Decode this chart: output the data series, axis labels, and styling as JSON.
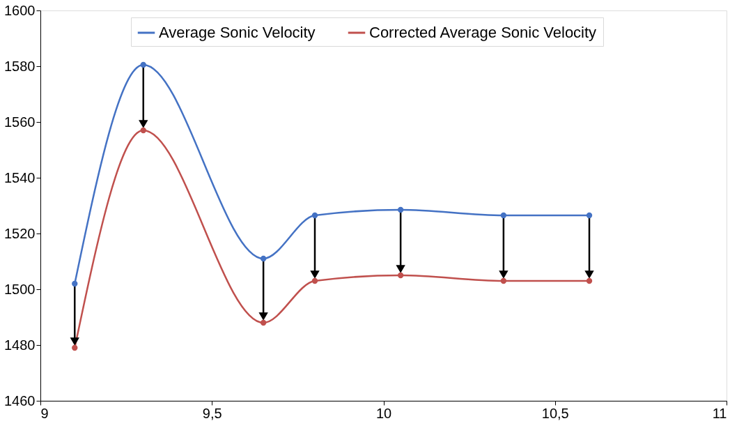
{
  "chart_data": {
    "type": "line",
    "x": [
      9.1,
      9.3,
      9.65,
      9.8,
      10.05,
      10.35,
      10.6
    ],
    "series": [
      {
        "name": "Average Sonic Velocity",
        "color": "#4472c4",
        "values": [
          1502,
          1580.5,
          1511,
          1526.5,
          1528.5,
          1526.5,
          1526.5
        ]
      },
      {
        "name": "Corrected Average Sonic Velocity",
        "color": "#c0504d",
        "values": [
          1479,
          1557,
          1488,
          1503,
          1505,
          1503,
          1503
        ]
      }
    ],
    "xlim": [
      9,
      11
    ],
    "xticks": [
      9,
      {
        "value": 9.5,
        "label": "9,5"
      },
      10,
      {
        "value": 10.5,
        "label": "10,5"
      },
      11
    ],
    "ylim": [
      1460,
      1600
    ],
    "yticks": [
      1460,
      1480,
      1500,
      1520,
      1540,
      1560,
      1580,
      1600
    ],
    "grid": false,
    "legend": "top",
    "marker": "circle",
    "line_style": "solid"
  }
}
